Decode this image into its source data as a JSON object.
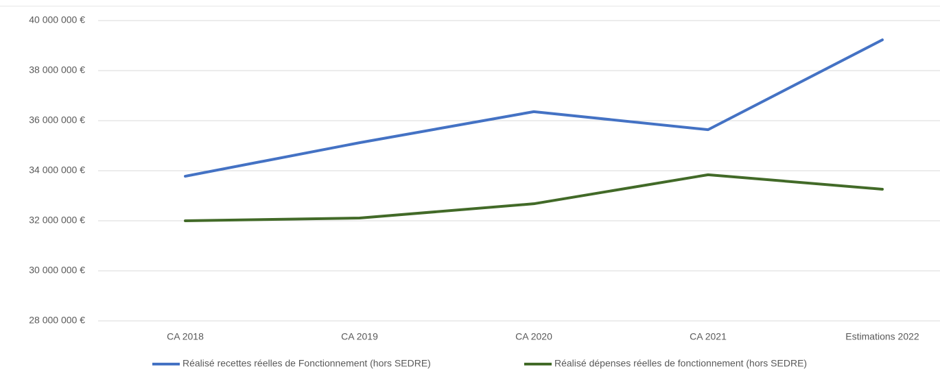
{
  "chart_data": {
    "type": "line",
    "categories": [
      "CA 2018",
      "CA 2019",
      "CA 2020",
      "CA 2021",
      "Estimations 2022"
    ],
    "series": [
      {
        "name": "Réalisé recettes réelles de Fonctionnement (hors SEDRE)",
        "color": "#4472c4",
        "values": [
          33780000,
          35120000,
          36360000,
          35640000,
          39230000
        ]
      },
      {
        "name": "Réalisé dépenses réelles de fonctionnement (hors SEDRE)",
        "color": "#426a28",
        "values": [
          32000000,
          32110000,
          32680000,
          33840000,
          33260000
        ]
      }
    ],
    "ylim": [
      28000000,
      40000000
    ],
    "yticks": [
      {
        "value": 28000000,
        "label": "28 000 000 €"
      },
      {
        "value": 30000000,
        "label": "30 000 000 €"
      },
      {
        "value": 32000000,
        "label": "32 000 000 €"
      },
      {
        "value": 34000000,
        "label": "34 000 000 €"
      },
      {
        "value": 36000000,
        "label": "36 000 000 €"
      },
      {
        "value": 38000000,
        "label": "38 000 000 €"
      },
      {
        "value": 40000000,
        "label": "40 000 000 €"
      }
    ],
    "grid": true,
    "legend": "bottom"
  }
}
